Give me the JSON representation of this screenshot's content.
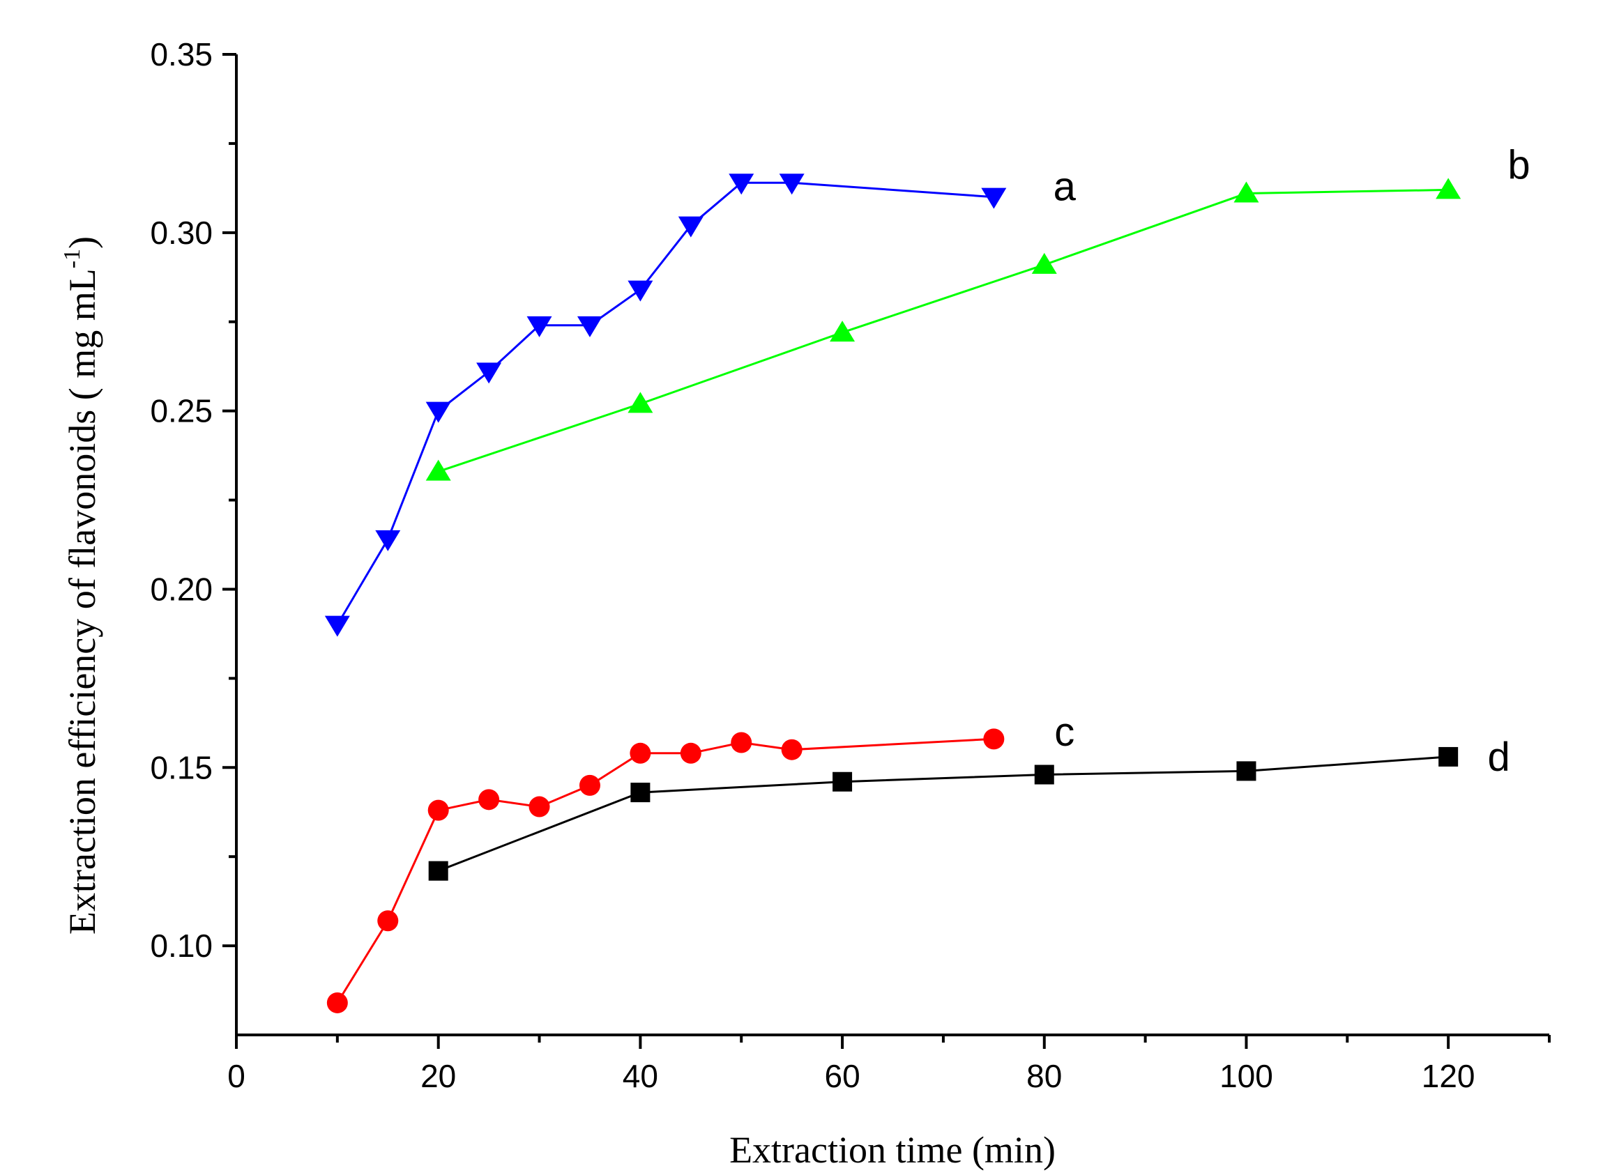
{
  "chart_data": {
    "type": "line",
    "title": "",
    "xlabel": "Extraction time (min)",
    "ylabel_main": "Extraction efficiency of flavonoids (  mg mL",
    "ylabel_sup": "-1",
    "ylabel_close": ")",
    "xlim": [
      0,
      130
    ],
    "ylim": [
      0.075,
      0.35
    ],
    "xticks": [
      0,
      20,
      40,
      60,
      80,
      100,
      120
    ],
    "xtick_labels": [
      "0",
      "20",
      "40",
      "60",
      "80",
      "100",
      "120"
    ],
    "yticks": [
      0.1,
      0.15,
      0.2,
      0.25,
      0.3,
      0.35
    ],
    "ytick_labels": [
      "0.10",
      "0.15",
      "0.20",
      "0.25",
      "0.30",
      "0.35"
    ],
    "grid": false,
    "series": [
      {
        "name": "a",
        "label": "a",
        "color": "#0000ff",
        "marker": "triangle-down",
        "x": [
          10,
          15,
          20,
          25,
          30,
          35,
          40,
          45,
          50,
          55,
          75
        ],
        "y": [
          0.19,
          0.214,
          0.25,
          0.261,
          0.274,
          0.274,
          0.284,
          0.302,
          0.314,
          0.314,
          0.31
        ],
        "label_pos": [
          82,
          0.313
        ]
      },
      {
        "name": "b",
        "label": "b",
        "color": "#00ff00",
        "marker": "triangle-up",
        "x": [
          20,
          40,
          60,
          80,
          100,
          120
        ],
        "y": [
          0.233,
          0.252,
          0.272,
          0.291,
          0.311,
          0.312
        ],
        "label_pos": [
          127,
          0.319
        ]
      },
      {
        "name": "c",
        "label": "c",
        "color": "#ff0000",
        "marker": "circle",
        "x": [
          10,
          15,
          20,
          25,
          30,
          35,
          40,
          45,
          50,
          55,
          75
        ],
        "y": [
          0.084,
          0.107,
          0.138,
          0.141,
          0.139,
          0.145,
          0.154,
          0.154,
          0.157,
          0.155,
          0.158
        ],
        "label_pos": [
          82,
          0.16
        ]
      },
      {
        "name": "d",
        "label": "d",
        "color": "#000000",
        "marker": "square",
        "x": [
          20,
          40,
          60,
          80,
          100,
          120
        ],
        "y": [
          0.121,
          0.143,
          0.146,
          0.148,
          0.149,
          0.153
        ],
        "label_pos": [
          125,
          0.153
        ]
      }
    ]
  }
}
